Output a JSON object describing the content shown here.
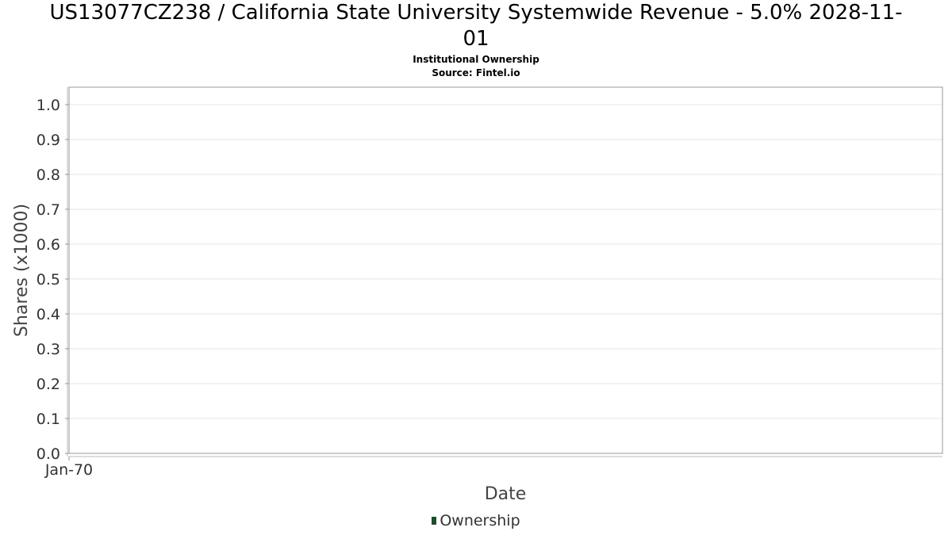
{
  "chart_data": {
    "type": "bar",
    "title_lines": [
      "US13077CZ238 / California State University Systemwide Revenue - 5.0% 2028-11-",
      "01"
    ],
    "subtitle": "Institutional Ownership",
    "source": "Source: Fintel.io",
    "xlabel": "Date",
    "ylabel": "Shares (x1000)",
    "x_tick_labels": [
      "Jan-70"
    ],
    "y_ticks": [
      0.0,
      0.1,
      0.2,
      0.3,
      0.4,
      0.5,
      0.6,
      0.7,
      0.8,
      0.9,
      1.0
    ],
    "ylim": [
      0,
      1.05
    ],
    "grid": true,
    "legend_position": "bottom-center",
    "series": [
      {
        "name": "Ownership",
        "color": "#1e4d2b",
        "values": []
      }
    ]
  }
}
